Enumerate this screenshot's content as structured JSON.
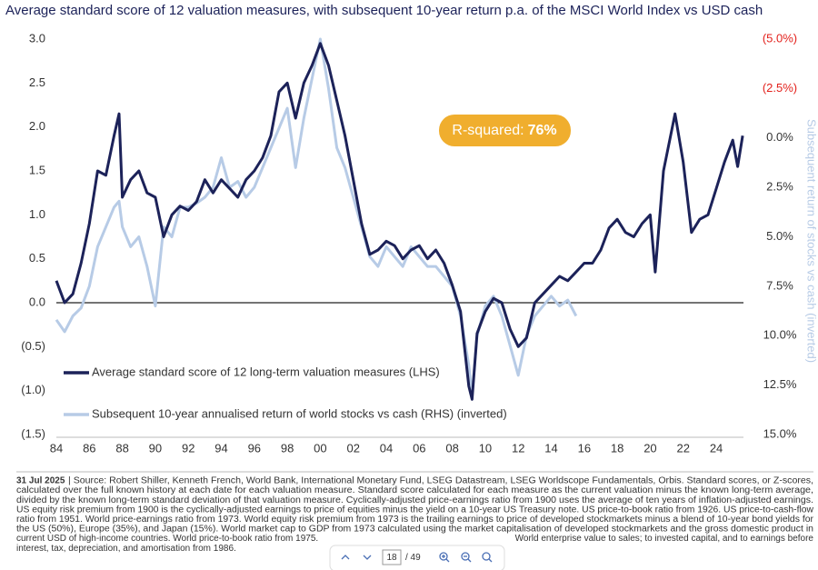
{
  "chart_data": {
    "type": "line",
    "title": "Average standard score of 12 valuation measures, with subsequent 10-year return p.a. of the MSCI World Index vs USD cash",
    "y2_label": "Subsequent return of stocks vs cash (inverted)",
    "annotation": {
      "label": "R-squared:",
      "value": "76%"
    },
    "legend": "lower left",
    "x": [
      1984,
      1984.5,
      1985,
      1985.5,
      1986,
      1986.5,
      1987,
      1987.5,
      1987.8,
      1988,
      1988.5,
      1989,
      1989.5,
      1990,
      1990.5,
      1991,
      1991.5,
      1992,
      1992.5,
      1993,
      1993.5,
      1994,
      1994.5,
      1995,
      1995.5,
      1996,
      1996.5,
      1997,
      1997.5,
      1998,
      1998.5,
      1999,
      1999.5,
      2000,
      2000.5,
      2001,
      2001.5,
      2002,
      2002.5,
      2003,
      2003.5,
      2004,
      2004.5,
      2005,
      2005.5,
      2006,
      2006.5,
      2007,
      2007.5,
      2008,
      2008.5,
      2009,
      2009.2,
      2009.5,
      2010,
      2010.5,
      2011,
      2011.5,
      2012,
      2012.5,
      2013,
      2013.5,
      2014,
      2014.5,
      2015,
      2015.5,
      2016,
      2016.5,
      2017,
      2017.5,
      2018,
      2018.5,
      2019,
      2019.5,
      2020,
      2020.3,
      2020.8,
      2021.5,
      2022,
      2022.5,
      2023,
      2023.5,
      2024,
      2024.5,
      2025,
      2025.3,
      2025.6
    ],
    "series": [
      {
        "name": "Average standard score of 12 long-term valuation measures (LHS)",
        "color": "#1c2259",
        "values": [
          0.25,
          0.0,
          0.1,
          0.45,
          0.9,
          1.5,
          1.45,
          1.9,
          2.15,
          1.2,
          1.4,
          1.5,
          1.25,
          1.2,
          0.75,
          1.0,
          1.1,
          1.05,
          1.15,
          1.4,
          1.25,
          1.4,
          1.3,
          1.2,
          1.4,
          1.5,
          1.65,
          1.9,
          2.4,
          2.5,
          2.1,
          2.5,
          2.7,
          2.95,
          2.7,
          2.3,
          1.9,
          1.4,
          0.9,
          0.55,
          0.6,
          0.7,
          0.65,
          0.5,
          0.6,
          0.65,
          0.5,
          0.6,
          0.45,
          0.2,
          -0.1,
          -0.95,
          -1.1,
          -0.35,
          -0.1,
          0.05,
          0.0,
          -0.3,
          -0.5,
          -0.4,
          0.0,
          0.1,
          0.2,
          0.3,
          0.25,
          0.35,
          0.45,
          0.45,
          0.6,
          0.85,
          0.95,
          0.8,
          0.75,
          0.9,
          1.0,
          0.35,
          1.5,
          2.15,
          1.6,
          0.8,
          0.95,
          1.0,
          1.3,
          1.6,
          1.85,
          1.55,
          1.9
        ]
      },
      {
        "name": "Subsequent 10-year annualised return of world stocks vs cash (RHS) (inverted)",
        "color": "#b7cbe6",
        "axis": "y2",
        "values": [
          9.2,
          9.8,
          9.0,
          8.6,
          7.5,
          5.5,
          4.5,
          3.5,
          3.2,
          4.5,
          5.5,
          5.0,
          6.5,
          8.5,
          4.5,
          5.0,
          3.5,
          3.5,
          3.3,
          3.0,
          2.5,
          1.0,
          2.5,
          2.2,
          3.0,
          2.5,
          1.5,
          0.5,
          -0.5,
          -1.5,
          1.5,
          -1.0,
          -3.0,
          -5.0,
          -2.5,
          0.5,
          1.5,
          3.0,
          4.5,
          6.0,
          6.5,
          5.5,
          6.0,
          6.5,
          5.5,
          6.0,
          6.5,
          6.5,
          7.0,
          7.5,
          9.0,
          11.5,
          13.0,
          10.0,
          8.5,
          8.0,
          9.0,
          10.5,
          12.0,
          10.0,
          9.0,
          8.5,
          8.0,
          8.5,
          8.2,
          9.0,
          null,
          null,
          null,
          null,
          null,
          null,
          null,
          null,
          null,
          null,
          null,
          null,
          null,
          null,
          null,
          null,
          null,
          null,
          null,
          null,
          null
        ]
      }
    ],
    "xlim": [
      1984,
      2025.65
    ],
    "xticks": [
      {
        "value": 1984,
        "label": "84"
      },
      {
        "value": 1986,
        "label": "86"
      },
      {
        "value": 1988,
        "label": "88"
      },
      {
        "value": 1990,
        "label": "90"
      },
      {
        "value": 1992,
        "label": "92"
      },
      {
        "value": 1994,
        "label": "94"
      },
      {
        "value": 1996,
        "label": "96"
      },
      {
        "value": 1998,
        "label": "98"
      },
      {
        "value": 2000,
        "label": "00"
      },
      {
        "value": 2002,
        "label": "02"
      },
      {
        "value": 2004,
        "label": "04"
      },
      {
        "value": 2006,
        "label": "06"
      },
      {
        "value": 2008,
        "label": "08"
      },
      {
        "value": 2010,
        "label": "10"
      },
      {
        "value": 2012,
        "label": "12"
      },
      {
        "value": 2014,
        "label": "14"
      },
      {
        "value": 2016,
        "label": "16"
      },
      {
        "value": 2018,
        "label": "18"
      },
      {
        "value": 2020,
        "label": "20"
      },
      {
        "value": 2022,
        "label": "22"
      },
      {
        "value": 2024,
        "label": "24"
      }
    ],
    "ylim": [
      -1.5,
      3.0
    ],
    "yticks": [
      {
        "value": 3,
        "label": "3.0"
      },
      {
        "value": 2.5,
        "label": "2.5"
      },
      {
        "value": 2,
        "label": "2.0"
      },
      {
        "value": 1.5,
        "label": "1.5"
      },
      {
        "value": 1,
        "label": "1.0"
      },
      {
        "value": 0.5,
        "label": "0.5"
      },
      {
        "value": 0,
        "label": "0.0"
      },
      {
        "value": -0.5,
        "label": "(0.5)"
      },
      {
        "value": -1,
        "label": "(1.0)"
      },
      {
        "value": -1.5,
        "label": "(1.5)"
      }
    ],
    "y2lim": [
      15,
      -5
    ],
    "y2ticks": [
      {
        "value": -5,
        "label": "(5.0%)"
      },
      {
        "value": -2.5,
        "label": "(2.5%)"
      },
      {
        "value": 0,
        "label": "0.0%"
      },
      {
        "value": 2.5,
        "label": "2.5%"
      },
      {
        "value": 5,
        "label": "5.0%"
      },
      {
        "value": 7.5,
        "label": "7.5%"
      },
      {
        "value": 10,
        "label": "10.0%"
      },
      {
        "value": 12.5,
        "label": "12.5%"
      },
      {
        "value": 15,
        "label": "15.0%"
      }
    ],
    "y2_negative_color": "#e3211c",
    "grid": false,
    "zero_line": true
  },
  "footnote": {
    "date": "31 Jul 2025",
    "lines": [
      " | Source: Robert Shiller, Kenneth French, World Bank, International Monetary Fund, LSEG Datastream, LSEG Worldscope Fundamentals, Orbis. Standard scores, or Z-scores,",
      "calculated over the full known history at each date for each valuation measure. Standard score calculated for each measure as the current valuation minus the known long-term average,",
      "divided by the known long-term standard deviation of that valuation measure. Cyclically-adjusted price-earnings ratio from 1900 uses the average of ten years of inflation-adjusted earnings.",
      "US equity risk premium from 1900 is the cyclically-adjusted earnings to price of equities minus the yield on a 10-year US Treasury note. US price-to-book ratio from 1926. US price-to-cash-flow",
      "ratio from 1951. World price-earnings ratio from 1973. World equity risk premium from 1973 is the trailing earnings to price of developed stockmarkets minus a blend of 10-year bond yields for",
      "the US (50%), Europe (35%), and Japan (15%). World market cap to GDP from 1973 calculated using the market capitalisation of developed stockmarkets and the gross domestic product in",
      "current USD of high-income countries. World price-to-book ratio from 1975."
    ],
    "line_7_right": "World enterprise value to sales; to invested capital, and to earnings before",
    "last_line": "interest, tax, depreciation, and amortisation from 1986."
  },
  "page_nav": {
    "page": "18",
    "total": "/ 49"
  }
}
